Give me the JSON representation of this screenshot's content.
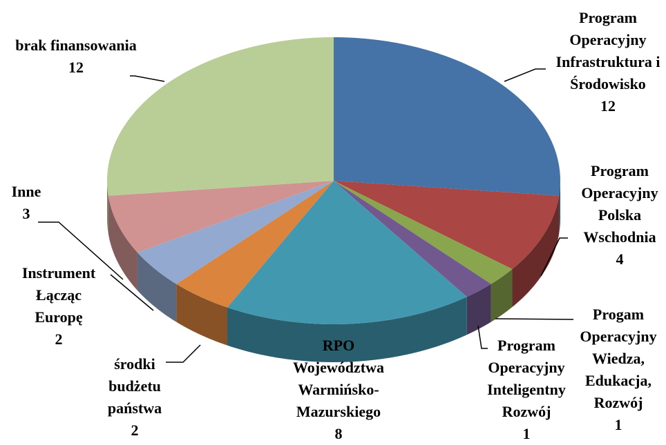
{
  "chart_data": {
    "type": "pie3d",
    "categories": [
      "Program Operacyjny Infrastruktura i Środowisko",
      "Program Operacyjny Polska Wschodnia",
      "Progam Operacyjny Wiedza, Edukacja, Rozwój",
      "Program Operacyjny Inteligentny Rozwój",
      "RPO Województwa Warmińsko-Mazurskiego",
      "środki budżetu państwa",
      "Instrument Łącząc Europę",
      "Inne",
      "brak finansowania"
    ],
    "values": [
      12,
      4,
      1,
      1,
      8,
      2,
      2,
      3,
      12
    ],
    "colors": [
      "#4572a7",
      "#aa4643",
      "#89a54e",
      "#71588f",
      "#4198af",
      "#db843d",
      "#93a9cf",
      "#d19392",
      "#b9cd96"
    ]
  }
}
